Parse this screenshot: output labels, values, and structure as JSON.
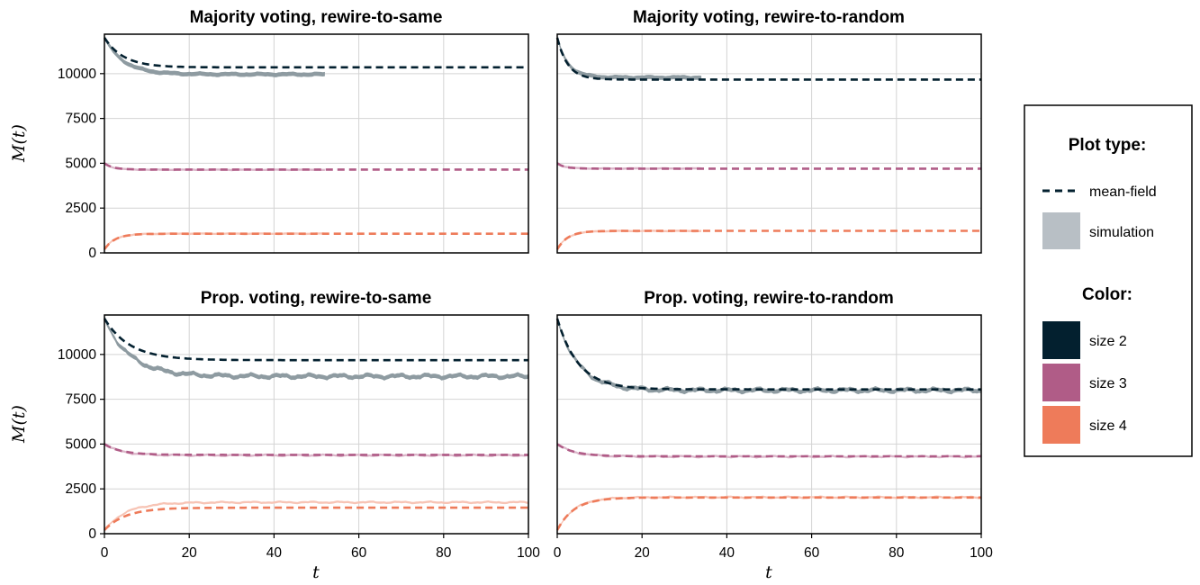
{
  "chart_data": [
    {
      "type": "line",
      "title": "Majority voting, rewire-to-same",
      "xlabel": "",
      "ylabel": "M(t)",
      "xlim": [
        0,
        100
      ],
      "ylim": [
        0,
        12200
      ],
      "xticks": [
        "0",
        "20",
        "40",
        "60",
        "80",
        "100"
      ],
      "yticks": [
        "0",
        "2500",
        "5000",
        "7500",
        "10000"
      ],
      "grid": true,
      "sim_end": 52,
      "series": [
        {
          "size": "size 2",
          "start": 12000,
          "meanfield_end": 10350,
          "sim_end_value": 9960,
          "tau": 4.5
        },
        {
          "size": "size 3",
          "start": 5000,
          "meanfield_end": 4650,
          "sim_end_value": 4640,
          "tau": 2.0
        },
        {
          "size": "size 4",
          "start": 200,
          "meanfield_end": 1070,
          "sim_end_value": 1070,
          "tau": 2.5
        }
      ]
    },
    {
      "type": "line",
      "title": "Majority voting, rewire-to-random",
      "xlabel": "",
      "ylabel": "",
      "xlim": [
        0,
        100
      ],
      "ylim": [
        0,
        12200
      ],
      "xticks": [
        "0",
        "20",
        "40",
        "60",
        "80",
        "100"
      ],
      "yticks": [
        "0",
        "2500",
        "5000",
        "7500",
        "10000"
      ],
      "grid": true,
      "sim_end": 34,
      "series": [
        {
          "size": "size 2",
          "start": 12000,
          "meanfield_end": 9670,
          "sim_end_value": 9780,
          "tau": 2.5
        },
        {
          "size": "size 3",
          "start": 5000,
          "meanfield_end": 4700,
          "sim_end_value": 4710,
          "tau": 1.8
        },
        {
          "size": "size 4",
          "start": 200,
          "meanfield_end": 1230,
          "sim_end_value": 1220,
          "tau": 2.5
        }
      ]
    },
    {
      "type": "line",
      "title": "Prop. voting, rewire-to-same",
      "xlabel": "t",
      "ylabel": "M(t)",
      "xlim": [
        0,
        100
      ],
      "ylim": [
        0,
        12200
      ],
      "xticks": [
        "0",
        "20",
        "40",
        "60",
        "80",
        "100"
      ],
      "yticks": [
        "0",
        "2500",
        "5000",
        "7500",
        "10000"
      ],
      "grid": true,
      "sim_end": 100,
      "series": [
        {
          "size": "size 2",
          "start": 12000,
          "meanfield_end": 9680,
          "sim_end_value": 8780,
          "tau": 6.0
        },
        {
          "size": "size 3",
          "start": 5000,
          "meanfield_end": 4400,
          "sim_end_value": 4370,
          "tau": 4.0
        },
        {
          "size": "size 4",
          "start": 200,
          "meanfield_end": 1450,
          "sim_end_value": 1750,
          "tau": 5.0
        }
      ]
    },
    {
      "type": "line",
      "title": "Prop. voting, rewire-to-random",
      "xlabel": "t",
      "ylabel": "",
      "xlim": [
        0,
        100
      ],
      "ylim": [
        0,
        12200
      ],
      "xticks": [
        "0",
        "20",
        "40",
        "60",
        "80",
        "100"
      ],
      "yticks": [
        "0",
        "2500",
        "5000",
        "7500",
        "10000"
      ],
      "grid": true,
      "sim_end": 100,
      "series": [
        {
          "size": "size 2",
          "start": 12000,
          "meanfield_end": 8050,
          "sim_end_value": 8000,
          "tau": 5.0
        },
        {
          "size": "size 3",
          "start": 5000,
          "meanfield_end": 4320,
          "sim_end_value": 4300,
          "tau": 4.0
        },
        {
          "size": "size 4",
          "start": 200,
          "meanfield_end": 2020,
          "sim_end_value": 2030,
          "tau": 4.0
        }
      ]
    }
  ],
  "legend": {
    "plot_type_title": "Plot type:",
    "mean_field_label": "mean-field",
    "simulation_label": "simulation",
    "color_title": "Color:",
    "sizes": [
      {
        "label": "size 2",
        "color": "#03202f"
      },
      {
        "label": "size 3",
        "color": "#b05c87"
      },
      {
        "label": "size 4",
        "color": "#ee7b5a"
      }
    ],
    "placement": "right"
  },
  "colors": {
    "size 2": "#03202f",
    "size 3": "#b05c87",
    "size 4": "#ee7b5a",
    "simulation_tint": "#b8bfc5",
    "grid": "#d4d4d4"
  }
}
